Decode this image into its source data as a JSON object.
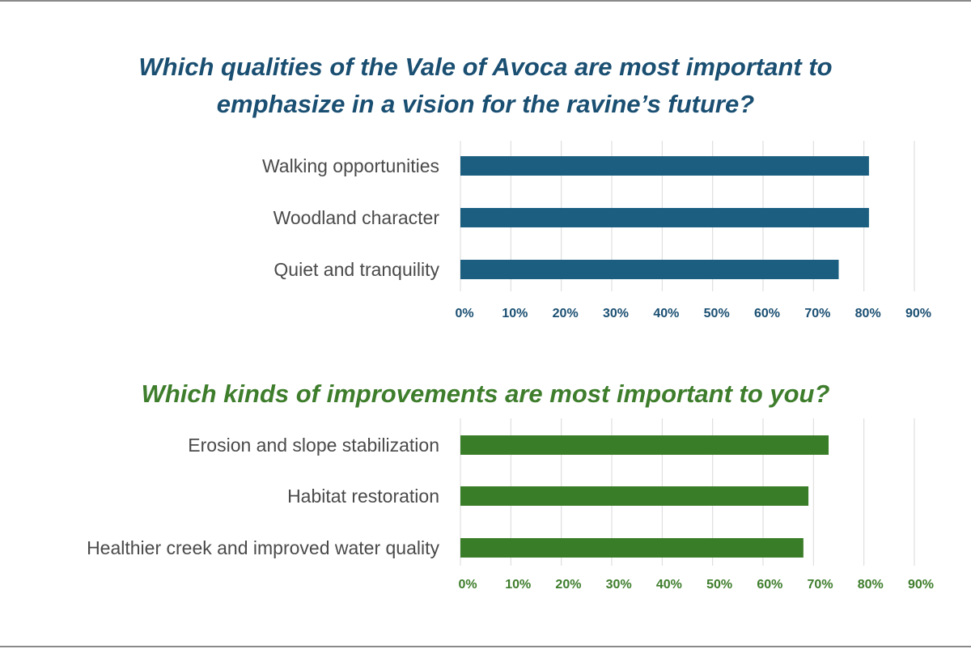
{
  "chart_data": [
    {
      "type": "bar",
      "orientation": "horizontal",
      "title_lines": [
        "Which qualities of the Vale of Avoca are most important to",
        "emphasize in a vision for the ravine’s future?"
      ],
      "categories": [
        "Walking opportunities",
        "Woodland character",
        "Quiet and tranquility"
      ],
      "values": [
        81,
        81,
        75
      ],
      "xlim": [
        0,
        90
      ],
      "xticks": [
        "0%",
        "10%",
        "20%",
        "30%",
        "40%",
        "50%",
        "60%",
        "70%",
        "80%",
        "90%"
      ],
      "grid": true,
      "color": "#1b5e80",
      "title_color": "#1a4f72"
    },
    {
      "type": "bar",
      "orientation": "horizontal",
      "title": "Which kinds of improvements are most important to you?",
      "categories": [
        "Erosion and slope stabilization",
        "Habitat restoration",
        "Healthier creek and improved water quality"
      ],
      "values": [
        73,
        69,
        68
      ],
      "xlim": [
        0,
        90
      ],
      "xticks": [
        "0%",
        "10%",
        "20%",
        "30%",
        "40%",
        "50%",
        "60%",
        "70%",
        "80%",
        "90%"
      ],
      "grid": true,
      "color": "#3a7d28",
      "title_color": "#3e7d2c"
    }
  ]
}
